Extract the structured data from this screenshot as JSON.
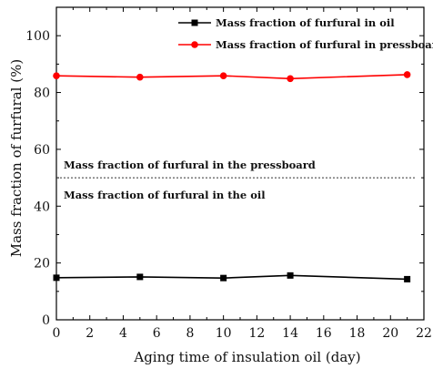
{
  "chart_data": {
    "type": "line",
    "title": "",
    "xlabel": "Aging time of insulation oil (day)",
    "ylabel": "Mass fraction of furfural (%)",
    "xlim": [
      0,
      22
    ],
    "ylim": [
      0,
      110
    ],
    "x_ticks": [
      "0",
      "2",
      "4",
      "6",
      "8",
      "10",
      "12",
      "14",
      "16",
      "18",
      "20",
      "22"
    ],
    "y_ticks": [
      "0",
      "20",
      "40",
      "60",
      "80",
      "100"
    ],
    "grid": false,
    "legend_position": "top-right",
    "x": [
      0,
      5,
      10,
      14,
      21
    ],
    "series": [
      {
        "name": "Mass fraction of furfural in oil",
        "color": "#000000",
        "marker": "square",
        "values": [
          14.8,
          15.1,
          14.7,
          15.6,
          14.3
        ]
      },
      {
        "name": "Mass fraction of furfural in pressboard",
        "color": "#ff0000",
        "marker": "circle",
        "values": [
          85.9,
          85.4,
          85.9,
          84.9,
          86.3
        ]
      }
    ],
    "reference_line": {
      "y": 50,
      "style": "dotted",
      "color": "#000000"
    },
    "annotations": [
      {
        "text": "Mass fraction of furfural in the pressboard",
        "position": "above-reference-line"
      },
      {
        "text": "Mass fraction of furfural in the oil",
        "position": "below-reference-line"
      }
    ]
  }
}
